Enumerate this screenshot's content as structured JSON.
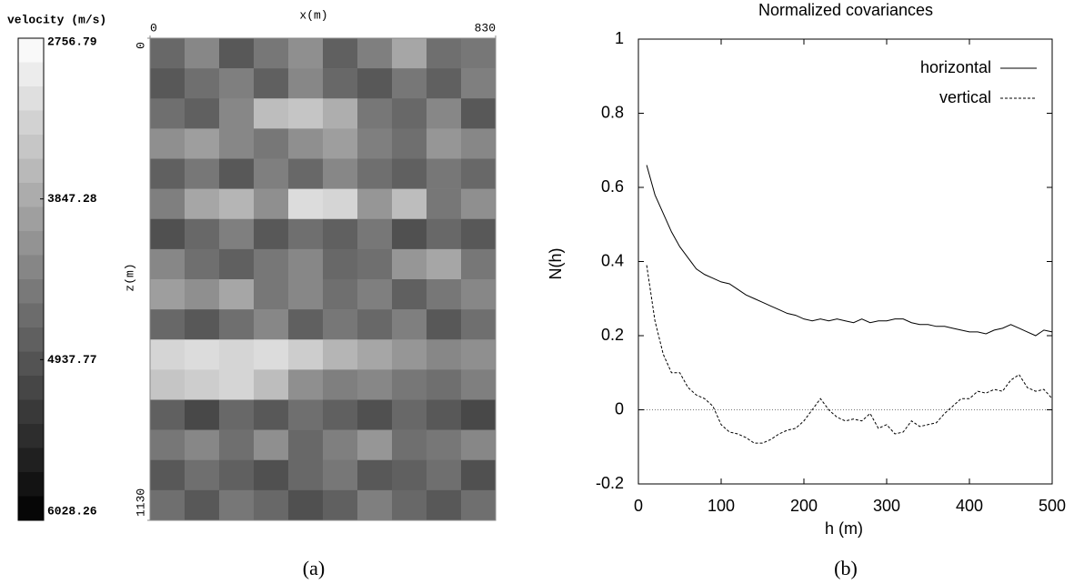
{
  "chart_data": [
    {
      "type": "heatmap",
      "title": "velocity (m/s)",
      "xlabel": "x(m)",
      "ylabel": "z(m)",
      "xlim": [
        0,
        830
      ],
      "ylim": [
        0,
        1130
      ],
      "xticks": [
        0,
        830
      ],
      "yticks": [
        0,
        1130
      ],
      "clim": [
        2756.79,
        6028.26
      ],
      "cticks": [
        2756.79,
        3847.28,
        4937.77,
        6028.26
      ],
      "z": [
        [
          4700,
          4300,
          4900,
          4500,
          4200,
          4800,
          4400,
          3900,
          4600,
          4500
        ],
        [
          4900,
          4600,
          4400,
          4800,
          4300,
          4700,
          4900,
          4500,
          4800,
          4400
        ],
        [
          4600,
          4800,
          4300,
          3600,
          3500,
          3800,
          4500,
          4700,
          4300,
          4900
        ],
        [
          4200,
          4000,
          4300,
          4500,
          4200,
          4000,
          4400,
          4600,
          4100,
          4300
        ],
        [
          4800,
          4500,
          4900,
          4400,
          4700,
          4300,
          4600,
          4800,
          4500,
          4700
        ],
        [
          4400,
          3900,
          3700,
          4200,
          3200,
          3300,
          4100,
          3600,
          4500,
          4200
        ],
        [
          5000,
          4700,
          4400,
          4900,
          4600,
          4800,
          4500,
          5000,
          4700,
          4900
        ],
        [
          4300,
          4600,
          4800,
          4500,
          4300,
          4700,
          4600,
          4100,
          3900,
          4500
        ],
        [
          4000,
          4200,
          3900,
          4500,
          4300,
          4600,
          4400,
          4800,
          4500,
          4300
        ],
        [
          4700,
          4900,
          4600,
          4300,
          4800,
          4500,
          4700,
          4400,
          4900,
          4600
        ],
        [
          3300,
          3200,
          3300,
          3200,
          3400,
          3700,
          3900,
          4100,
          4300,
          4200
        ],
        [
          3500,
          3400,
          3300,
          3600,
          4200,
          4400,
          4300,
          4500,
          4600,
          4400
        ],
        [
          4800,
          5100,
          4700,
          4900,
          4600,
          4800,
          5000,
          4700,
          4900,
          5100
        ],
        [
          4500,
          4300,
          4600,
          4200,
          4700,
          4400,
          4100,
          4600,
          4500,
          4300
        ],
        [
          4900,
          4600,
          4800,
          5000,
          4700,
          4500,
          4900,
          4800,
          4600,
          5000
        ],
        [
          4600,
          4900,
          4500,
          4700,
          5000,
          4800,
          4400,
          4700,
          4900,
          4600
        ]
      ],
      "caption": "(a)"
    },
    {
      "type": "line",
      "title": "Normalized covariances",
      "xlabel": "h (m)",
      "ylabel": "N(h)",
      "xlim": [
        0,
        500
      ],
      "ylim": [
        -0.2,
        1
      ],
      "xticks": [
        0,
        100,
        200,
        300,
        400,
        500
      ],
      "yticks": [
        -0.2,
        0,
        0.2,
        0.4,
        0.6,
        0.8,
        1
      ],
      "legend": "top-right",
      "x": [
        10,
        20,
        30,
        40,
        50,
        60,
        70,
        80,
        90,
        100,
        110,
        120,
        130,
        140,
        150,
        160,
        170,
        180,
        190,
        200,
        210,
        220,
        230,
        240,
        250,
        260,
        270,
        280,
        290,
        300,
        310,
        320,
        330,
        340,
        350,
        360,
        370,
        380,
        390,
        400,
        410,
        420,
        430,
        440,
        450,
        460,
        470,
        480,
        490,
        500
      ],
      "series": [
        {
          "name": "horizontal",
          "color": "#000000",
          "style": "solid",
          "values": [
            0.66,
            0.58,
            0.53,
            0.48,
            0.44,
            0.41,
            0.38,
            0.365,
            0.355,
            0.345,
            0.34,
            0.325,
            0.31,
            0.3,
            0.29,
            0.28,
            0.27,
            0.26,
            0.255,
            0.245,
            0.24,
            0.245,
            0.24,
            0.245,
            0.24,
            0.235,
            0.245,
            0.235,
            0.24,
            0.24,
            0.245,
            0.245,
            0.235,
            0.23,
            0.23,
            0.225,
            0.225,
            0.22,
            0.215,
            0.21,
            0.21,
            0.205,
            0.215,
            0.22,
            0.23,
            0.22,
            0.21,
            0.2,
            0.215,
            0.21
          ]
        },
        {
          "name": "vertical",
          "color": "#000000",
          "style": "dashed",
          "values": [
            0.39,
            0.24,
            0.15,
            0.1,
            0.1,
            0.06,
            0.04,
            0.03,
            0.01,
            -0.04,
            -0.06,
            -0.065,
            -0.075,
            -0.09,
            -0.09,
            -0.08,
            -0.065,
            -0.055,
            -0.05,
            -0.03,
            0.0,
            0.03,
            0.0,
            -0.02,
            -0.03,
            -0.025,
            -0.03,
            -0.01,
            -0.05,
            -0.04,
            -0.065,
            -0.06,
            -0.03,
            -0.045,
            -0.04,
            -0.035,
            -0.01,
            0.01,
            0.03,
            0.03,
            0.05,
            0.045,
            0.055,
            0.05,
            0.08,
            0.095,
            0.06,
            0.05,
            0.055,
            0.03
          ]
        }
      ],
      "caption": "(b)"
    }
  ]
}
